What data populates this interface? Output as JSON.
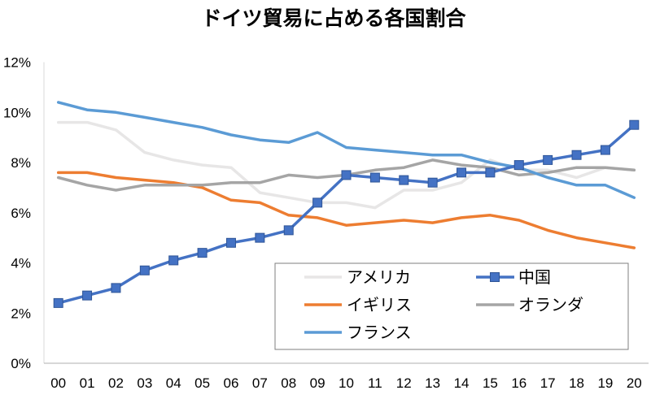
{
  "chart_data": {
    "type": "line",
    "title": "ドイツ貿易に占める各国割合",
    "xlabel": "",
    "ylabel": "",
    "categories": [
      "00",
      "01",
      "02",
      "03",
      "04",
      "05",
      "06",
      "07",
      "08",
      "09",
      "10",
      "11",
      "12",
      "13",
      "14",
      "15",
      "16",
      "17",
      "18",
      "19",
      "20"
    ],
    "ylim": [
      0,
      12
    ],
    "ystep": 2,
    "ytick_labels": [
      "0%",
      "2%",
      "4%",
      "6%",
      "8%",
      "10%",
      "12%"
    ],
    "grid": false,
    "legend_position": "bottom-right",
    "series": [
      {
        "name": "アメリカ",
        "color": "#e7e6e6",
        "markers": false,
        "values": [
          9.6,
          9.6,
          9.3,
          8.4,
          8.1,
          7.9,
          7.8,
          6.8,
          6.6,
          6.4,
          6.4,
          6.2,
          6.9,
          6.9,
          7.2,
          8.1,
          7.7,
          7.7,
          7.4,
          7.8,
          7.7
        ]
      },
      {
        "name": "中国",
        "color": "#4472c4",
        "markers": true,
        "values": [
          2.4,
          2.7,
          3.0,
          3.7,
          4.1,
          4.4,
          4.8,
          5.0,
          5.3,
          6.4,
          7.5,
          7.4,
          7.3,
          7.2,
          7.6,
          7.6,
          7.9,
          8.1,
          8.3,
          8.5,
          9.5
        ]
      },
      {
        "name": "イギリス",
        "color": "#ed7d31",
        "markers": false,
        "values": [
          7.6,
          7.6,
          7.4,
          7.3,
          7.2,
          7.0,
          6.5,
          6.4,
          5.9,
          5.8,
          5.5,
          5.6,
          5.7,
          5.6,
          5.8,
          5.9,
          5.7,
          5.3,
          5.0,
          4.8,
          4.6
        ]
      },
      {
        "name": "オランダ",
        "color": "#a5a5a5",
        "markers": false,
        "values": [
          7.4,
          7.1,
          6.9,
          7.1,
          7.1,
          7.1,
          7.2,
          7.2,
          7.5,
          7.4,
          7.5,
          7.7,
          7.8,
          8.1,
          7.9,
          7.8,
          7.5,
          7.6,
          7.8,
          7.8,
          7.7
        ]
      },
      {
        "name": "フランス",
        "color": "#5b9bd5",
        "markers": false,
        "values": [
          10.4,
          10.1,
          10.0,
          9.8,
          9.6,
          9.4,
          9.1,
          8.9,
          8.8,
          9.2,
          8.6,
          8.5,
          8.4,
          8.3,
          8.3,
          8.0,
          7.8,
          7.4,
          7.1,
          7.1,
          6.6
        ]
      }
    ]
  }
}
